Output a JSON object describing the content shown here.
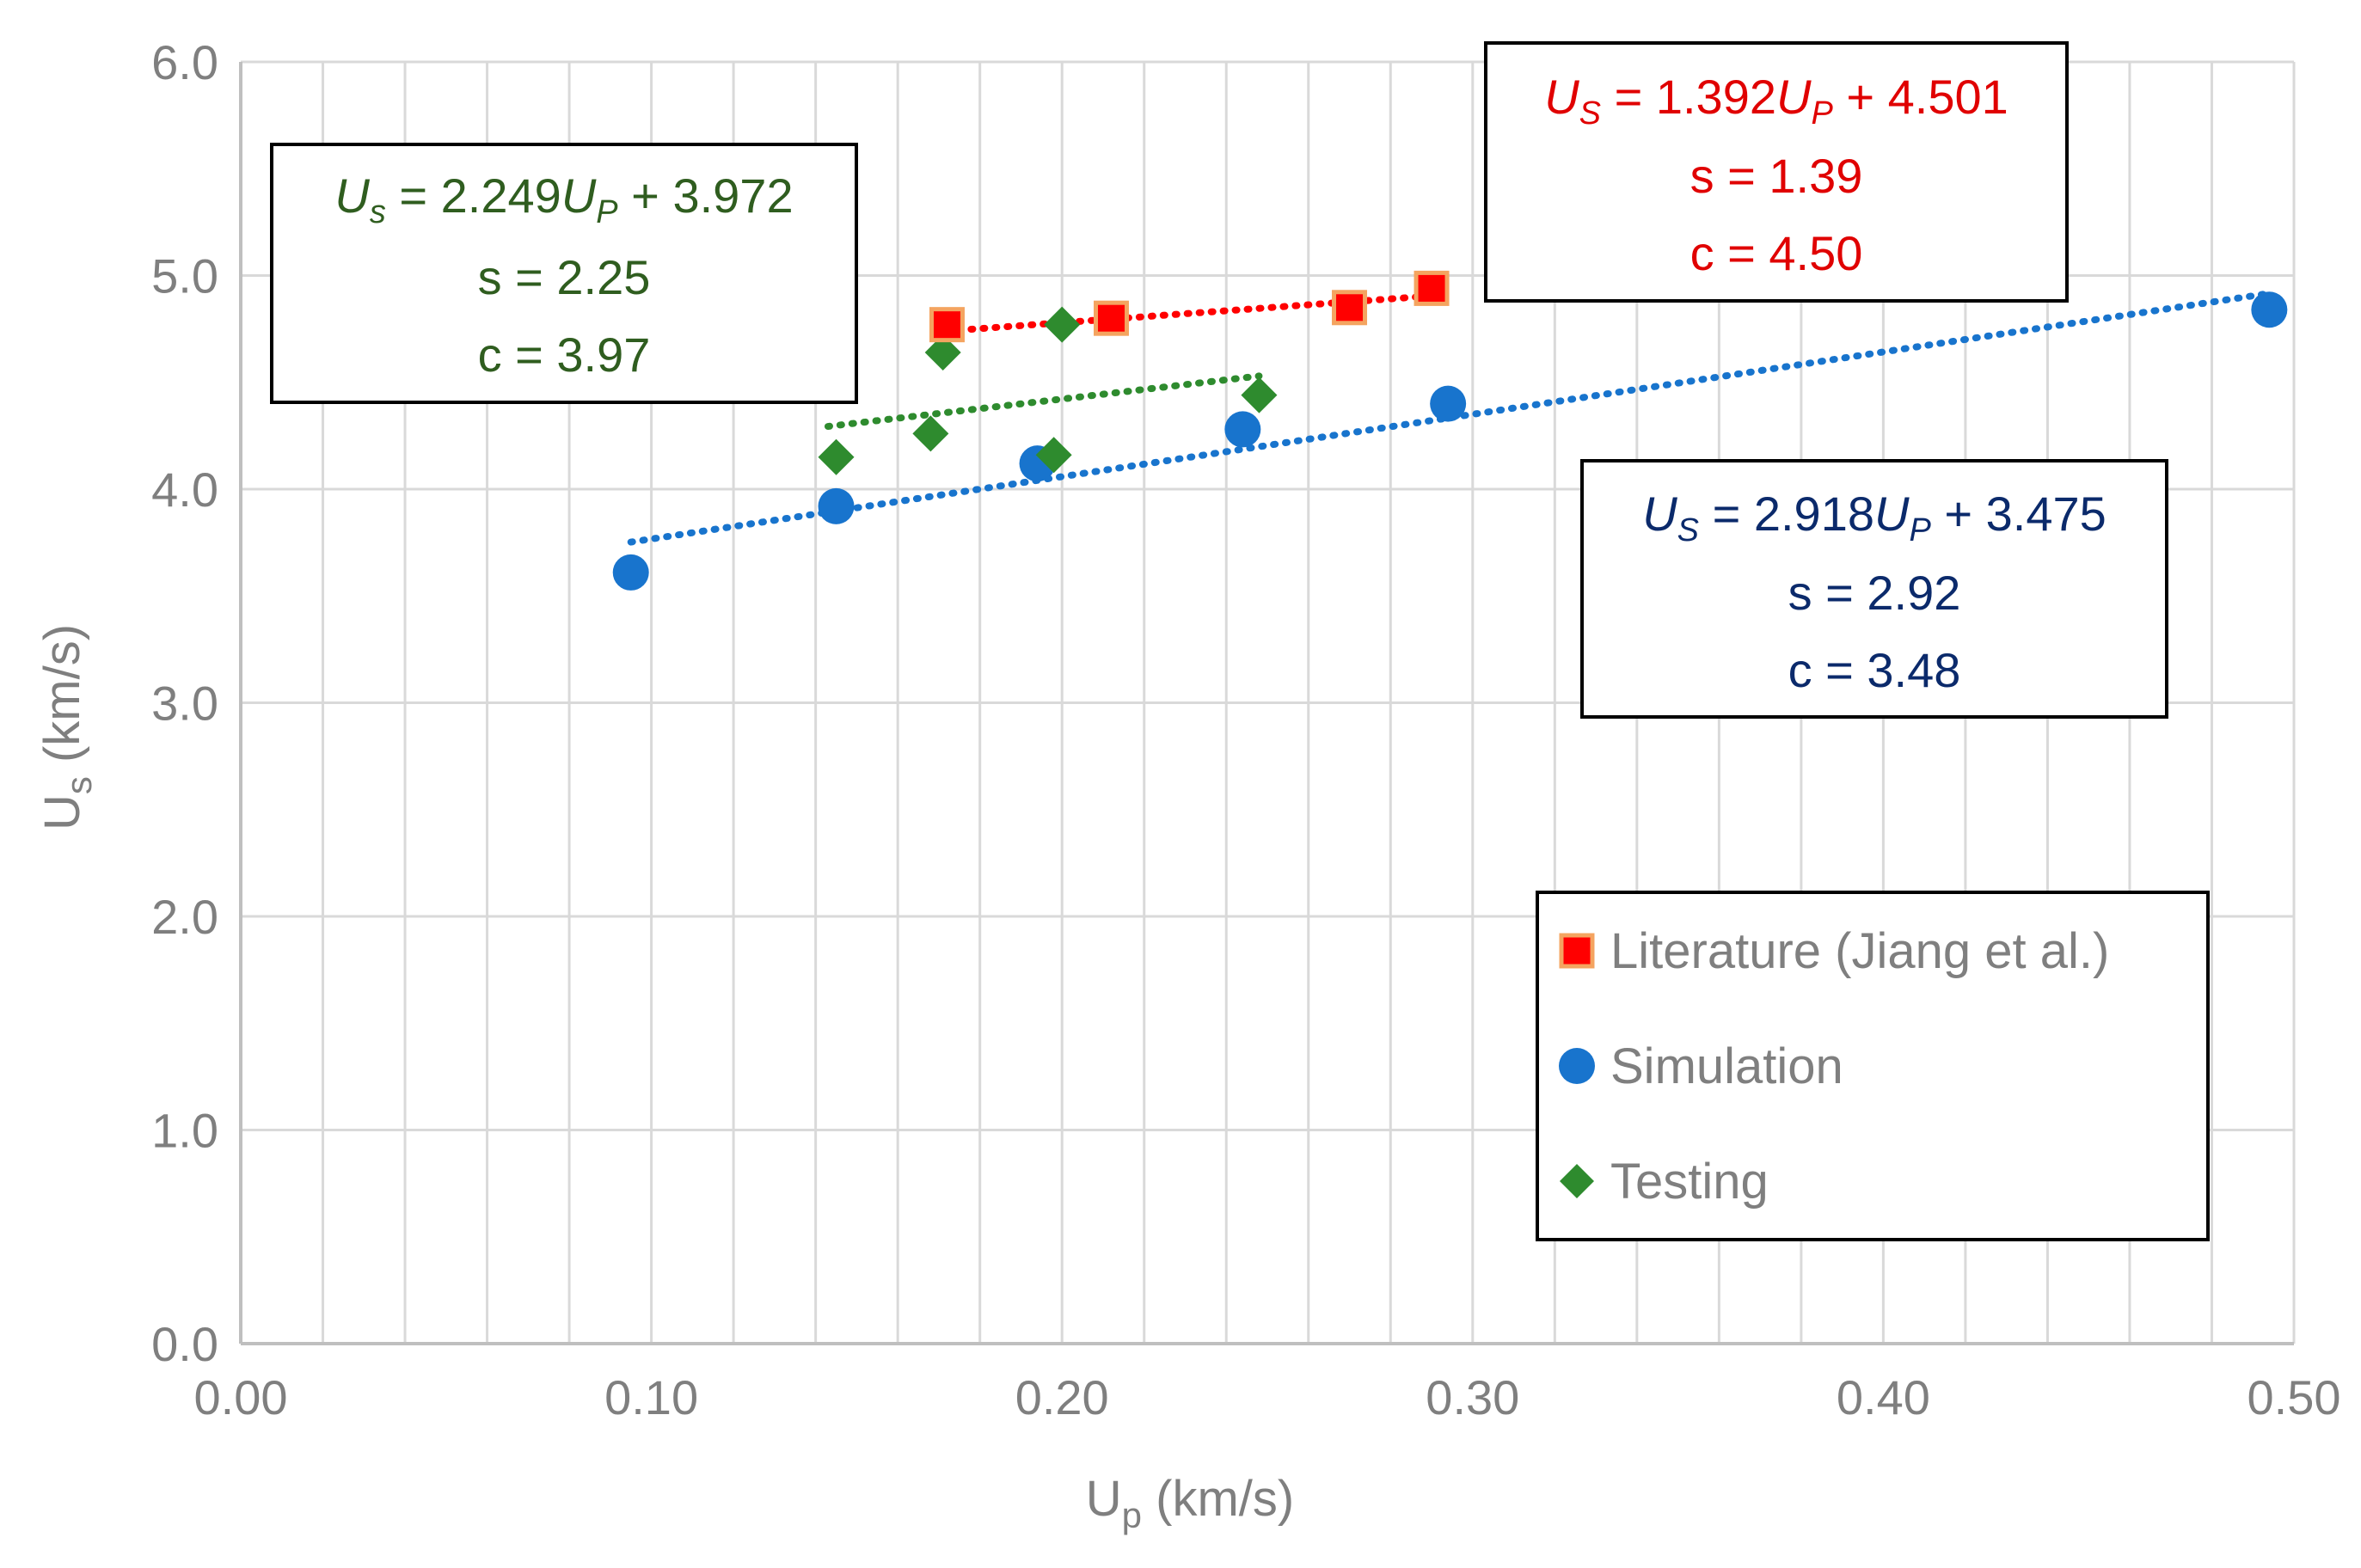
{
  "chart_data": {
    "type": "scatter",
    "title": "",
    "xlabel": {
      "main": "U",
      "sub": "p",
      "unit": " (km/s)"
    },
    "ylabel": {
      "main": "U",
      "sub": "s",
      "unit": " (km/s)"
    },
    "xlim": [
      0,
      0.5
    ],
    "ylim": [
      0,
      6
    ],
    "x_major_ticks": [
      0.0,
      0.1,
      0.2,
      0.3,
      0.4,
      0.5
    ],
    "x_tick_labels": [
      "0.00",
      "0.10",
      "0.20",
      "0.30",
      "0.40",
      "0.50"
    ],
    "x_minor_step": 0.02,
    "y_major_ticks": [
      0,
      1,
      2,
      3,
      4,
      5,
      6
    ],
    "y_tick_labels": [
      "0.0",
      "1.0",
      "2.0",
      "3.0",
      "4.0",
      "5.0",
      "6.0"
    ],
    "grid": true,
    "legend_position": "bottom-right",
    "series": [
      {
        "name": "Literature (Jiang et al.)",
        "marker": "square",
        "color": "#ff0000",
        "edge_color": "#f4a460",
        "trend_color": "#ff0000",
        "x": [
          0.172,
          0.212,
          0.27,
          0.29
        ],
        "y": [
          4.77,
          4.8,
          4.85,
          4.94
        ],
        "trend": {
          "slope": 1.392,
          "intercept": 4.501,
          "x_range": [
            0.172,
            0.29
          ]
        },
        "equation": {
          "lhs_main": "U",
          "lhs_sub": "S",
          "mid": " = 1.392",
          "mid_main": "U",
          "mid_sub": "P",
          "tail": " + 4.501",
          "s": "s = 1.39",
          "c": "c = 4.50"
        }
      },
      {
        "name": "Simulation",
        "marker": "circle",
        "color": "#1874cd",
        "edge_color": "#1874cd",
        "trend_color": "#1874cd",
        "x": [
          0.095,
          0.145,
          0.194,
          0.244,
          0.294,
          0.494
        ],
        "y": [
          3.61,
          3.92,
          4.12,
          4.28,
          4.4,
          4.84
        ],
        "trend": {
          "slope": 2.918,
          "intercept": 3.475,
          "x_range": [
            0.095,
            0.494
          ]
        },
        "equation": {
          "lhs_main": "U",
          "lhs_sub": "S",
          "mid": " = 2.918",
          "mid_main": "U",
          "mid_sub": "P",
          "tail": " + 3.475",
          "s": "s = 2.92",
          "c": "c = 3.48"
        }
      },
      {
        "name": "Testing",
        "marker": "diamond",
        "color": "#2e8b2e",
        "edge_color": "#2e8b2e",
        "trend_color": "#2e8b2e",
        "x": [
          0.145,
          0.168,
          0.171,
          0.198,
          0.2,
          0.248
        ],
        "y": [
          4.15,
          4.26,
          4.64,
          4.16,
          4.77,
          4.44
        ],
        "trend": {
          "slope": 2.249,
          "intercept": 3.972,
          "x_range": [
            0.143,
            0.248
          ]
        },
        "equation": {
          "lhs_main": "U",
          "lhs_sub": "s",
          "mid": " = 2.249",
          "mid_main": "U",
          "mid_sub": "P",
          "tail": " + 3.972",
          "s": "s = 2.25",
          "c": "c = 3.97"
        }
      }
    ],
    "colors": {
      "axis_text": "#7f7f7f",
      "grid": "#d9d9d9",
      "axis_line": "#bfbfbf",
      "legend_text": "#7f7f7f",
      "eq_testing": "#2f5d1f",
      "eq_literature": "#e00000",
      "eq_simulation": "#0b2a6b"
    }
  }
}
